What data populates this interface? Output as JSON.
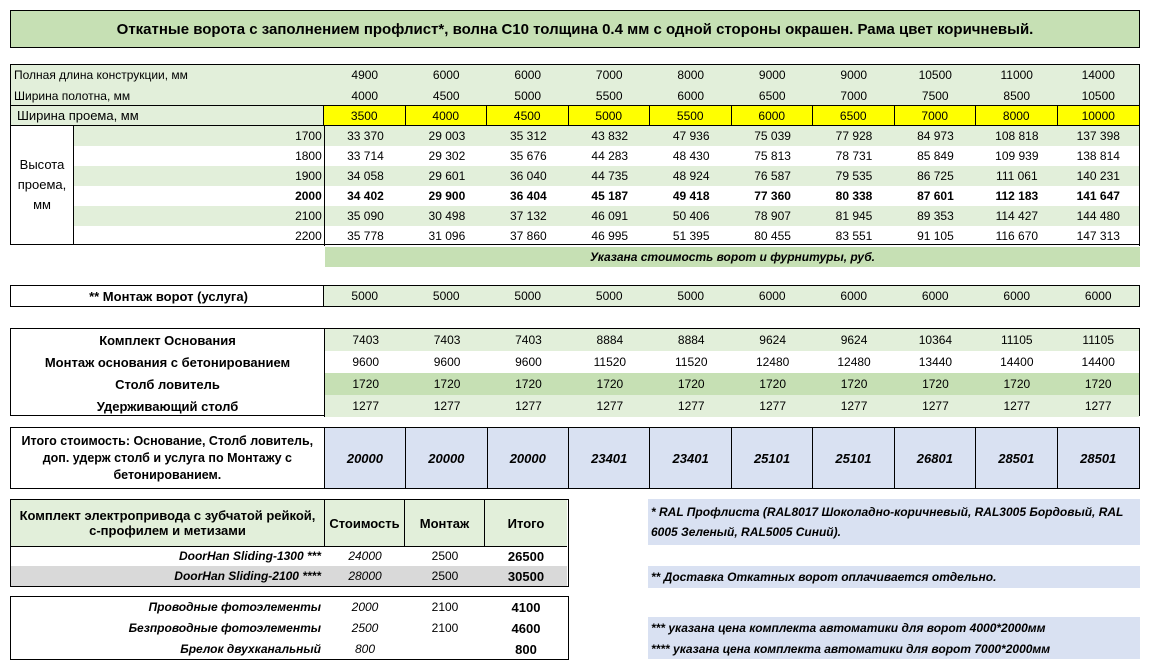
{
  "title": "Откатные ворота с заполнением профлист*, волна С10 толщина 0.4 мм с одной стороны окрашен. Рама цвет коричневый.",
  "dimensions": {
    "length_label": "Полная длина конструкции, мм",
    "length": [
      "4900",
      "6000",
      "6000",
      "7000",
      "8000",
      "9000",
      "9000",
      "10500",
      "11000",
      "14000"
    ],
    "width_label": "Ширина полотна, мм",
    "width": [
      "4000",
      "4500",
      "5000",
      "5500",
      "6000",
      "6500",
      "7000",
      "7500",
      "8500",
      "10500"
    ],
    "opening_label": "Ширина проема, мм",
    "opening": [
      "3500",
      "4000",
      "4500",
      "5000",
      "5500",
      "6000",
      "6500",
      "7000",
      "8000",
      "10000"
    ]
  },
  "height_label": "Высота проема, мм",
  "height_rows": [
    {
      "h": "1700",
      "vals": [
        "33 370",
        "29 003",
        "35 312",
        "43 832",
        "47 936",
        "75 039",
        "77 928",
        "84 973",
        "108 818",
        "137 398"
      ]
    },
    {
      "h": "1800",
      "vals": [
        "33 714",
        "29 302",
        "35 676",
        "44 283",
        "48 430",
        "75 813",
        "78 731",
        "85 849",
        "109 939",
        "138 814"
      ]
    },
    {
      "h": "1900",
      "vals": [
        "34 058",
        "29 601",
        "36 040",
        "44 735",
        "48 924",
        "76 587",
        "79 535",
        "86 725",
        "111 061",
        "140 231"
      ]
    },
    {
      "h": "2000",
      "vals": [
        "34 402",
        "29 900",
        "36 404",
        "45 187",
        "49 418",
        "77 360",
        "80 338",
        "87 601",
        "112 183",
        "141 647"
      ]
    },
    {
      "h": "2100",
      "vals": [
        "35 090",
        "30 498",
        "37 132",
        "46 091",
        "50 406",
        "78 907",
        "81 945",
        "89 353",
        "114 427",
        "144 480"
      ]
    },
    {
      "h": "2200",
      "vals": [
        "35 778",
        "31 096",
        "37 860",
        "46 995",
        "51 395",
        "80 455",
        "83 551",
        "91 105",
        "116 670",
        "147 313"
      ]
    }
  ],
  "price_note": "Указана стоимость ворот и фурнитуры, руб.",
  "montage": {
    "label": "** Монтаж ворот (услуга)",
    "vals": [
      "5000",
      "5000",
      "5000",
      "5000",
      "5000",
      "6000",
      "6000",
      "6000",
      "6000",
      "6000"
    ]
  },
  "kit": [
    {
      "label": "Комплект Основания",
      "vals": [
        "7403",
        "7403",
        "7403",
        "8884",
        "8884",
        "9624",
        "9624",
        "10364",
        "11105",
        "11105"
      ]
    },
    {
      "label": "Монтаж основания с бетонированием",
      "vals": [
        "9600",
        "9600",
        "9600",
        "11520",
        "11520",
        "12480",
        "12480",
        "13440",
        "14400",
        "14400"
      ]
    },
    {
      "label": "Столб ловитель",
      "vals": [
        "1720",
        "1720",
        "1720",
        "1720",
        "1720",
        "1720",
        "1720",
        "1720",
        "1720",
        "1720"
      ]
    },
    {
      "label": "Удерживающий столб",
      "vals": [
        "1277",
        "1277",
        "1277",
        "1277",
        "1277",
        "1277",
        "1277",
        "1277",
        "1277",
        "1277"
      ]
    }
  ],
  "total": {
    "label": "Итого стоимость:  Основание, Столб ловитель, доп. удерж столб и услуга по Монтажу с бетонированием.",
    "vals": [
      "20000",
      "20000",
      "20000",
      "23401",
      "23401",
      "25101",
      "25101",
      "26801",
      "28501",
      "28501"
    ]
  },
  "drive": {
    "header": [
      "Комплект электропривода с зубчатой рейкой, с-профилем и метизами",
      "Стоимость",
      "Монтаж",
      "Итого"
    ],
    "rows": [
      {
        "name": "DoorHan Sliding-1300 ***",
        "cost": "24000",
        "mount": "2500",
        "total": "26500"
      },
      {
        "name": "DoorHan Sliding-2100 ****",
        "cost": "28000",
        "mount": "2500",
        "total": "30500"
      }
    ]
  },
  "photo": [
    {
      "name": "Проводные фотоэлементы",
      "cost": "2000",
      "mount": "2100",
      "total": "4100"
    },
    {
      "name": "Безпроводные фотоэлементы",
      "cost": "2500",
      "mount": "2100",
      "total": "4600"
    },
    {
      "name": "Брелок двухканальный",
      "cost": "800",
      "mount": "",
      "total": "800"
    }
  ],
  "notes": {
    "ral": "* RAL Профлиста (RAL8017 Шоколадно-коричневый, RAL3005 Бордовый, RAL 6005 Зеленый, RAL5005 Синий).",
    "delivery": "** Доставка Откатных ворот оплачивается отдельно.",
    "auto1": "*** указана цена комплекта автоматики для ворот 4000*2000мм",
    "auto2": "**** указана цена комплекта автоматики для ворот 7000*2000мм"
  },
  "colors": {
    "light_green": "#e2efda",
    "mid_green": "#c6e0b4",
    "yellow": "#ffff00",
    "light_blue": "#d9e1f2"
  }
}
